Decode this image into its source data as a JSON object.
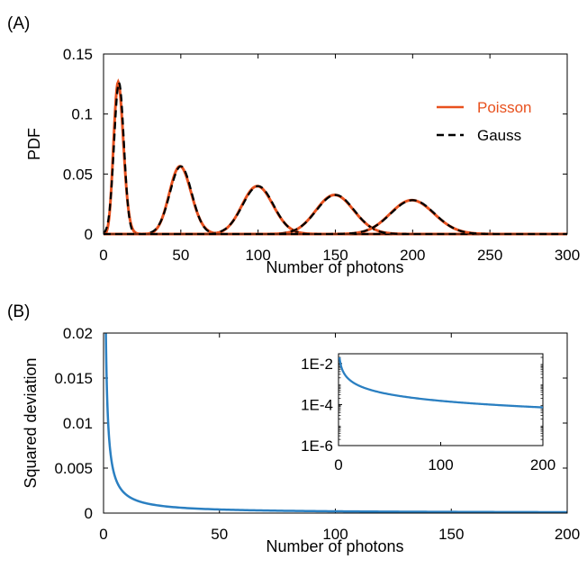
{
  "panel_a": {
    "label": "(A)",
    "xlabel": "Number of photons",
    "ylabel": "PDF",
    "xticks": [
      "0",
      "50",
      "100",
      "150",
      "200",
      "250",
      "300"
    ],
    "yticks": [
      "0",
      "0.05",
      "0.1",
      "0.15"
    ],
    "legend": {
      "poisson": "Poisson",
      "gauss": "Gauss"
    }
  },
  "panel_b": {
    "label": "(B)",
    "xlabel": "Number of photons",
    "ylabel": "Squared deviation",
    "xticks": [
      "0",
      "50",
      "100",
      "150",
      "200"
    ],
    "yticks": [
      "0",
      "0.005",
      "0.01",
      "0.015",
      "0.02"
    ],
    "inset": {
      "xticks": [
        "0",
        "100",
        "200"
      ],
      "yticks": [
        "1E-6",
        "1E-4",
        "1E-2"
      ]
    }
  },
  "colors": {
    "poisson": "#e8511e",
    "gauss": "#000000",
    "deviation": "#2a7fc1"
  },
  "chart_data": [
    {
      "type": "line",
      "xlabel": "Number of photons",
      "ylabel": "PDF",
      "xlim": [
        0,
        300
      ],
      "ylim": [
        0,
        0.15
      ],
      "means": [
        10,
        50,
        100,
        150,
        200
      ],
      "series": [
        {
          "name": "Poisson",
          "style": "solid",
          "color": "#e8511e",
          "peaks": [
            {
              "x": 10,
              "y": 0.125
            },
            {
              "x": 50,
              "y": 0.056
            },
            {
              "x": 100,
              "y": 0.04
            },
            {
              "x": 150,
              "y": 0.033
            },
            {
              "x": 200,
              "y": 0.028
            }
          ]
        },
        {
          "name": "Gauss",
          "style": "dashed",
          "color": "#000000",
          "peaks": [
            {
              "x": 10,
              "y": 0.126
            },
            {
              "x": 50,
              "y": 0.056
            },
            {
              "x": 100,
              "y": 0.04
            },
            {
              "x": 150,
              "y": 0.033
            },
            {
              "x": 200,
              "y": 0.028
            }
          ]
        }
      ],
      "legend_position": "top-right",
      "grid": false
    },
    {
      "type": "line",
      "xlabel": "Number of photons",
      "ylabel": "Squared deviation",
      "xlim": [
        0,
        200
      ],
      "ylim": [
        0,
        0.02
      ],
      "series": [
        {
          "color": "#2a7fc1",
          "x": [
            1,
            2,
            3,
            4,
            5,
            7,
            10,
            15,
            20,
            30,
            50,
            100,
            150,
            200
          ],
          "y": [
            0.02,
            0.01,
            0.0067,
            0.005,
            0.004,
            0.0024,
            0.0012,
            0.0006,
            0.00035,
            0.00016,
            6e-05,
            1.6e-05,
            8e-06,
            4e-06
          ]
        }
      ],
      "inset": {
        "xlim": [
          0,
          200
        ],
        "ylim": [
          1e-06,
          0.03
        ],
        "y_scale": "log",
        "yticks": [
          1e-06,
          0.0001,
          0.01
        ]
      },
      "grid": false
    }
  ]
}
